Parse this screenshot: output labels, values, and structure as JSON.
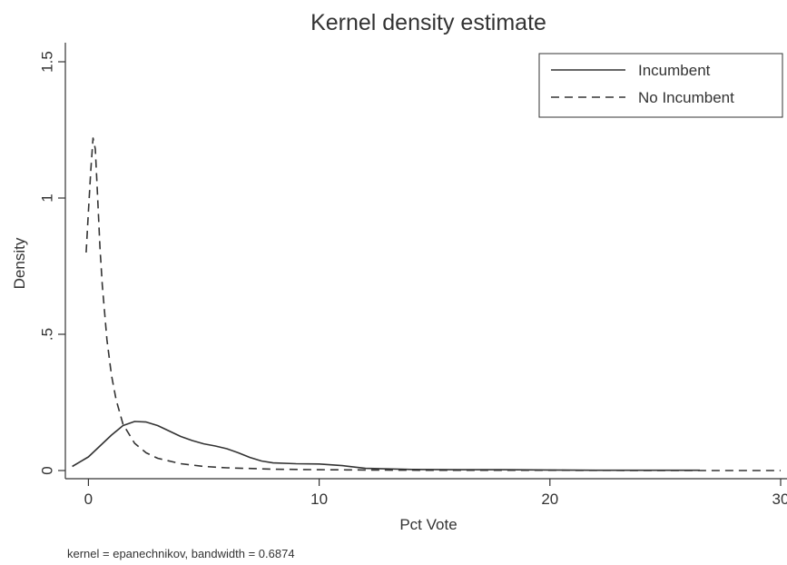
{
  "chart_data": {
    "type": "line",
    "title": "Kernel density estimate",
    "xlabel": "Pct Vote",
    "ylabel": "Density",
    "note": "kernel = epanechnikov, bandwidth = 0.6874",
    "xlim": [
      -1,
      30
    ],
    "ylim": [
      -0.03,
      1.57
    ],
    "xticks": [
      0,
      10,
      20,
      30
    ],
    "xtick_labels": [
      "0",
      "10",
      "20",
      "30"
    ],
    "yticks": [
      0,
      0.5,
      1,
      1.5
    ],
    "ytick_labels": [
      "0",
      ".5",
      "1",
      "1.5"
    ],
    "grid": false,
    "legend_position": "top-right",
    "series": [
      {
        "name": "Incumbent",
        "style": "solid",
        "color": "#333333",
        "x": [
          -0.7,
          0,
          0.5,
          1,
          1.5,
          2,
          2.5,
          3,
          3.5,
          4,
          4.5,
          5,
          5.5,
          6,
          6.5,
          7,
          7.5,
          8,
          9,
          10,
          11,
          12,
          14,
          16,
          18,
          20,
          22,
          24,
          26.5
        ],
        "y": [
          0.015,
          0.05,
          0.09,
          0.13,
          0.165,
          0.18,
          0.178,
          0.165,
          0.145,
          0.125,
          0.11,
          0.098,
          0.09,
          0.08,
          0.065,
          0.048,
          0.035,
          0.028,
          0.025,
          0.024,
          0.018,
          0.008,
          0.004,
          0.003,
          0.003,
          0.002,
          0.001,
          0.001,
          0.001
        ]
      },
      {
        "name": "No Incumbent",
        "style": "dashed",
        "color": "#333333",
        "x": [
          -0.1,
          0,
          0.1,
          0.2,
          0.3,
          0.4,
          0.5,
          0.6,
          0.8,
          1,
          1.2,
          1.5,
          2,
          2.5,
          3,
          4,
          5,
          6,
          8,
          10,
          12,
          15,
          20,
          25,
          30
        ],
        "y": [
          0.8,
          0.95,
          1.1,
          1.22,
          1.18,
          1.0,
          0.82,
          0.68,
          0.48,
          0.35,
          0.26,
          0.17,
          0.1,
          0.065,
          0.045,
          0.025,
          0.015,
          0.01,
          0.005,
          0.003,
          0.002,
          0.001,
          0.001,
          0.0,
          0.0
        ]
      }
    ]
  }
}
